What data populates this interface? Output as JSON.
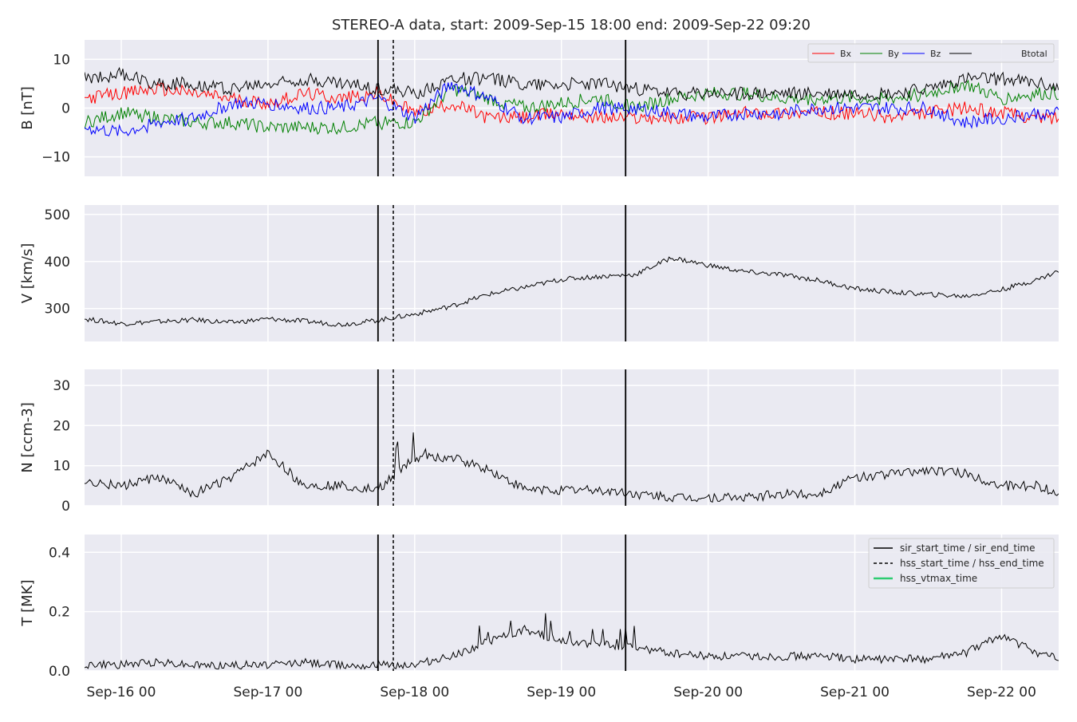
{
  "figure": {
    "title": "STEREO-A data, start: 2009-Sep-15 18:00  end: 2009-Sep-22 09:20",
    "x_tick_labels": [
      "Sep-16 00",
      "Sep-17 00",
      "Sep-18 00",
      "Sep-19 00",
      "Sep-20 00",
      "Sep-21 00",
      "Sep-22 00"
    ]
  },
  "event_markers": {
    "sir_start_time": "2009-09-17 18:00",
    "hss_start_time": "2009-09-17 20:30",
    "sir_end_time": "2009-09-19 10:30"
  },
  "chart_data": [
    {
      "type": "line",
      "panel": "magnetic-field",
      "ylabel": "B [nT]",
      "ylim": [
        -14,
        14
      ],
      "y_ticks": [
        -10,
        0,
        10
      ],
      "xlim": [
        "2009-09-15 18:00",
        "2009-09-22 09:20"
      ],
      "grid": true,
      "legend_placement": "top-right",
      "x": [
        "2009-09-15 18:00",
        "2009-09-16 00:00",
        "2009-09-16 06:00",
        "2009-09-16 12:00",
        "2009-09-16 18:00",
        "2009-09-17 00:00",
        "2009-09-17 06:00",
        "2009-09-17 12:00",
        "2009-09-17 18:00",
        "2009-09-18 00:00",
        "2009-09-18 06:00",
        "2009-09-18 12:00",
        "2009-09-18 18:00",
        "2009-09-19 00:00",
        "2009-09-19 06:00",
        "2009-09-19 12:00",
        "2009-09-19 18:00",
        "2009-09-20 00:00",
        "2009-09-20 06:00",
        "2009-09-20 12:00",
        "2009-09-20 18:00",
        "2009-09-21 00:00",
        "2009-09-21 06:00",
        "2009-09-21 12:00",
        "2009-09-21 18:00",
        "2009-09-22 00:00",
        "2009-09-22 06:00",
        "2009-09-22 09:20"
      ],
      "series": [
        {
          "name": "Bx",
          "color": "#ff0000",
          "values": [
            2,
            3,
            4,
            3,
            2,
            1,
            3,
            2,
            3,
            -1,
            1,
            -2,
            -2,
            -1,
            -2,
            -2,
            -2,
            -2,
            -1,
            -1,
            -1,
            -1,
            -2,
            -1,
            0,
            -1,
            -2,
            -2
          ]
        },
        {
          "name": "By",
          "color": "#008000",
          "values": [
            -3,
            -1,
            -2,
            -3,
            -3,
            -4,
            -4,
            -4,
            -3,
            -3,
            4,
            2,
            0,
            1,
            2,
            0,
            2,
            3,
            3,
            2,
            2,
            2,
            2,
            3,
            5,
            2,
            3,
            3
          ]
        },
        {
          "name": "Bz",
          "color": "#0000ff",
          "values": [
            -4,
            -5,
            -3,
            -2,
            1,
            1,
            0,
            0,
            2,
            -2,
            5,
            2,
            -2,
            -2,
            0,
            0,
            -1,
            -2,
            -1,
            -1,
            0,
            0,
            0,
            0,
            -3,
            -2,
            -1,
            -1
          ]
        },
        {
          "name": "Btotal",
          "color": "#000000",
          "values": [
            6,
            7,
            5,
            5,
            4,
            5,
            6,
            5,
            4,
            3,
            6,
            6,
            5,
            5,
            5,
            4,
            3,
            3,
            3,
            3,
            3,
            3,
            3,
            4,
            6,
            6,
            5,
            4
          ]
        }
      ]
    },
    {
      "type": "line",
      "panel": "velocity",
      "ylabel": "V [km/s]",
      "ylim": [
        230,
        520
      ],
      "y_ticks": [
        300,
        400,
        500
      ],
      "xlim": [
        "2009-09-15 18:00",
        "2009-09-22 09:20"
      ],
      "grid": true,
      "x": [
        "2009-09-15 18:00",
        "2009-09-16 00:00",
        "2009-09-16 06:00",
        "2009-09-16 12:00",
        "2009-09-16 18:00",
        "2009-09-17 00:00",
        "2009-09-17 06:00",
        "2009-09-17 12:00",
        "2009-09-17 18:00",
        "2009-09-18 00:00",
        "2009-09-18 06:00",
        "2009-09-18 12:00",
        "2009-09-18 18:00",
        "2009-09-19 00:00",
        "2009-09-19 06:00",
        "2009-09-19 12:00",
        "2009-09-19 18:00",
        "2009-09-20 00:00",
        "2009-09-20 06:00",
        "2009-09-20 12:00",
        "2009-09-20 18:00",
        "2009-09-21 00:00",
        "2009-09-21 06:00",
        "2009-09-21 12:00",
        "2009-09-21 18:00",
        "2009-09-22 00:00",
        "2009-09-22 06:00",
        "2009-09-22 09:20"
      ],
      "series": [
        {
          "name": "V",
          "color": "#000000",
          "values": [
            278,
            268,
            272,
            276,
            270,
            278,
            273,
            266,
            275,
            288,
            305,
            330,
            345,
            362,
            368,
            372,
            408,
            392,
            378,
            372,
            360,
            342,
            335,
            330,
            326,
            340,
            362,
            380
          ]
        }
      ]
    },
    {
      "type": "line",
      "panel": "density",
      "ylabel": "N [ccm-3]",
      "ylim": [
        0,
        34
      ],
      "y_ticks": [
        0,
        10,
        20,
        30
      ],
      "xlim": [
        "2009-09-15 18:00",
        "2009-09-22 09:20"
      ],
      "grid": true,
      "x": [
        "2009-09-15 18:00",
        "2009-09-16 00:00",
        "2009-09-16 06:00",
        "2009-09-16 12:00",
        "2009-09-16 18:00",
        "2009-09-17 00:00",
        "2009-09-17 06:00",
        "2009-09-17 12:00",
        "2009-09-17 18:00",
        "2009-09-18 00:00",
        "2009-09-18 06:00",
        "2009-09-18 12:00",
        "2009-09-18 18:00",
        "2009-09-19 00:00",
        "2009-09-19 06:00",
        "2009-09-19 12:00",
        "2009-09-19 18:00",
        "2009-09-20 00:00",
        "2009-09-20 06:00",
        "2009-09-20 12:00",
        "2009-09-20 18:00",
        "2009-09-21 00:00",
        "2009-09-21 06:00",
        "2009-09-21 12:00",
        "2009-09-21 18:00",
        "2009-09-22 00:00",
        "2009-09-22 06:00",
        "2009-09-22 09:20"
      ],
      "series": [
        {
          "name": "N",
          "color": "#000000",
          "values": [
            6,
            5,
            7,
            3,
            7,
            13,
            5,
            5,
            4,
            12,
            12,
            9,
            4,
            4,
            4,
            3,
            2,
            2,
            2,
            3,
            3,
            7,
            8,
            9,
            8,
            5,
            5,
            3
          ]
        }
      ]
    },
    {
      "type": "line",
      "panel": "temperature",
      "ylabel": "T [MK]",
      "ylim": [
        0,
        0.46
      ],
      "y_ticks": [
        0.0,
        0.2,
        0.4
      ],
      "xlim": [
        "2009-09-15 18:00",
        "2009-09-22 09:20"
      ],
      "grid": true,
      "legend_placement": "top-right",
      "legend": [
        {
          "label": "sir_start_time / sir_end_time",
          "color": "#000000",
          "style": "solid"
        },
        {
          "label": "hss_start_time / hss_end_time",
          "color": "#000000",
          "style": "dashed"
        },
        {
          "label": "hss_vtmax_time",
          "color": "#2ecc71",
          "style": "solid"
        }
      ],
      "x": [
        "2009-09-15 18:00",
        "2009-09-16 00:00",
        "2009-09-16 06:00",
        "2009-09-16 12:00",
        "2009-09-16 18:00",
        "2009-09-17 00:00",
        "2009-09-17 06:00",
        "2009-09-17 12:00",
        "2009-09-17 18:00",
        "2009-09-18 00:00",
        "2009-09-18 06:00",
        "2009-09-18 12:00",
        "2009-09-18 18:00",
        "2009-09-19 00:00",
        "2009-09-19 06:00",
        "2009-09-19 12:00",
        "2009-09-19 18:00",
        "2009-09-20 00:00",
        "2009-09-20 06:00",
        "2009-09-20 12:00",
        "2009-09-20 18:00",
        "2009-09-21 00:00",
        "2009-09-21 06:00",
        "2009-09-21 12:00",
        "2009-09-21 18:00",
        "2009-09-22 00:00",
        "2009-09-22 06:00",
        "2009-09-22 09:20"
      ],
      "series": [
        {
          "name": "T",
          "color": "#000000",
          "values": [
            0.02,
            0.02,
            0.03,
            0.02,
            0.02,
            0.02,
            0.03,
            0.02,
            0.02,
            0.02,
            0.05,
            0.1,
            0.14,
            0.1,
            0.09,
            0.08,
            0.06,
            0.05,
            0.05,
            0.05,
            0.05,
            0.04,
            0.04,
            0.04,
            0.06,
            0.12,
            0.06,
            0.04
          ]
        }
      ]
    }
  ]
}
